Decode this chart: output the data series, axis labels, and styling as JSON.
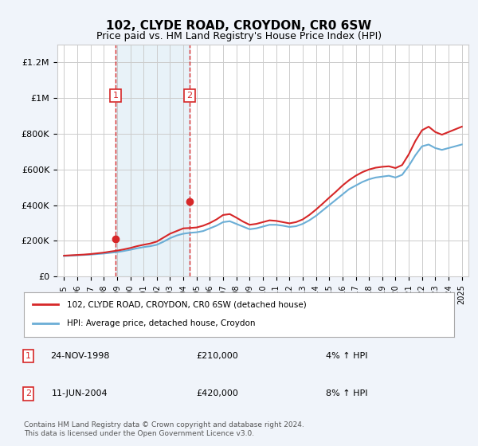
{
  "title": "102, CLYDE ROAD, CROYDON, CR0 6SW",
  "subtitle": "Price paid vs. HM Land Registry's House Price Index (HPI)",
  "footer": "Contains HM Land Registry data © Crown copyright and database right 2024.\nThis data is licensed under the Open Government Licence v3.0.",
  "legend_line1": "102, CLYDE ROAD, CROYDON, CR0 6SW (detached house)",
  "legend_line2": "HPI: Average price, detached house, Croydon",
  "transaction1_label": "1",
  "transaction1_date": "24-NOV-1998",
  "transaction1_price": "£210,000",
  "transaction1_hpi": "4% ↑ HPI",
  "transaction2_label": "2",
  "transaction2_date": "11-JUN-2004",
  "transaction2_price": "£420,000",
  "transaction2_hpi": "8% ↑ HPI",
  "transaction1_x": 1998.9,
  "transaction1_y": 210000,
  "transaction2_x": 2004.45,
  "transaction2_y": 420000,
  "ylim": [
    0,
    1300000
  ],
  "xlim": [
    1994.5,
    2025.5
  ],
  "hpi_color": "#6baed6",
  "price_color": "#d62728",
  "background_color": "#f0f4fa",
  "plot_bg_color": "#ffffff",
  "hpi_years": [
    1995,
    1995.5,
    1996,
    1996.5,
    1997,
    1997.5,
    1998,
    1998.5,
    1999,
    1999.5,
    2000,
    2000.5,
    2001,
    2001.5,
    2002,
    2002.5,
    2003,
    2003.5,
    2004,
    2004.5,
    2005,
    2005.5,
    2006,
    2006.5,
    2007,
    2007.5,
    2008,
    2008.5,
    2009,
    2009.5,
    2010,
    2010.5,
    2011,
    2011.5,
    2012,
    2012.5,
    2013,
    2013.5,
    2014,
    2014.5,
    2015,
    2015.5,
    2016,
    2016.5,
    2017,
    2017.5,
    2018,
    2018.5,
    2019,
    2019.5,
    2020,
    2020.5,
    2021,
    2021.5,
    2022,
    2022.5,
    2023,
    2023.5,
    2024,
    2024.5,
    2025
  ],
  "hpi_values": [
    115000,
    117000,
    119000,
    121000,
    123000,
    126000,
    129000,
    133000,
    137000,
    143000,
    150000,
    158000,
    165000,
    170000,
    178000,
    195000,
    215000,
    230000,
    240000,
    245000,
    248000,
    255000,
    270000,
    285000,
    305000,
    310000,
    295000,
    280000,
    265000,
    270000,
    280000,
    290000,
    290000,
    285000,
    278000,
    282000,
    295000,
    315000,
    340000,
    370000,
    400000,
    430000,
    460000,
    490000,
    510000,
    530000,
    545000,
    555000,
    560000,
    565000,
    555000,
    570000,
    620000,
    680000,
    730000,
    740000,
    720000,
    710000,
    720000,
    730000,
    740000
  ],
  "price_years": [
    1995,
    1995.5,
    1996,
    1996.5,
    1997,
    1997.5,
    1998,
    1998.5,
    1999,
    1999.5,
    2000,
    2000.5,
    2001,
    2001.5,
    2002,
    2002.5,
    2003,
    2003.5,
    2004,
    2004.5,
    2005,
    2005.5,
    2006,
    2006.5,
    2007,
    2007.5,
    2008,
    2008.5,
    2009,
    2009.5,
    2010,
    2010.5,
    2011,
    2011.5,
    2012,
    2012.5,
    2013,
    2013.5,
    2014,
    2014.5,
    2015,
    2015.5,
    2016,
    2016.5,
    2017,
    2017.5,
    2018,
    2018.5,
    2019,
    2019.5,
    2020,
    2020.5,
    2021,
    2021.5,
    2022,
    2022.5,
    2023,
    2023.5,
    2024,
    2024.5,
    2025
  ],
  "price_values": [
    117000,
    119000,
    121000,
    123000,
    126000,
    130000,
    134000,
    140000,
    145000,
    152000,
    160000,
    170000,
    178000,
    185000,
    196000,
    218000,
    240000,
    255000,
    270000,
    272000,
    275000,
    285000,
    300000,
    320000,
    345000,
    350000,
    330000,
    308000,
    290000,
    295000,
    305000,
    315000,
    312000,
    305000,
    298000,
    305000,
    320000,
    345000,
    375000,
    408000,
    442000,
    475000,
    510000,
    540000,
    565000,
    585000,
    600000,
    610000,
    615000,
    618000,
    608000,
    625000,
    685000,
    760000,
    820000,
    840000,
    810000,
    795000,
    810000,
    825000,
    840000
  ],
  "yticks": [
    0,
    200000,
    400000,
    600000,
    800000,
    1000000,
    1200000
  ],
  "ytick_labels": [
    "£0",
    "£200K",
    "£400K",
    "£600K",
    "£800K",
    "£1M",
    "£1.2M"
  ],
  "xtick_years": [
    1995,
    1996,
    1997,
    1998,
    1999,
    2000,
    2001,
    2002,
    2003,
    2004,
    2005,
    2006,
    2007,
    2008,
    2009,
    2010,
    2011,
    2012,
    2013,
    2014,
    2015,
    2016,
    2017,
    2018,
    2019,
    2020,
    2021,
    2022,
    2023,
    2024,
    2025
  ],
  "shade_x1": 1998.9,
  "shade_x2": 2004.45
}
